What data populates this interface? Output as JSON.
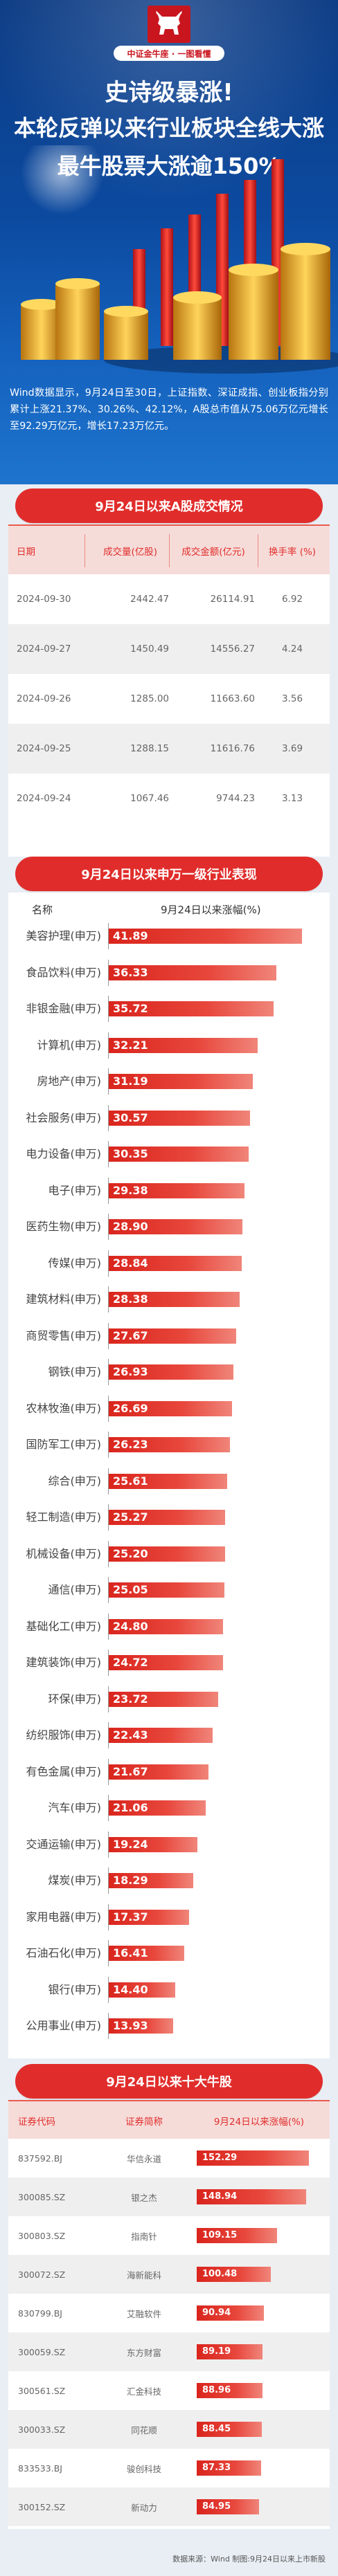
{
  "brand": {
    "label": "中证金牛座 · 一图看懂",
    "logo_icon": "bull-logo-icon"
  },
  "hero": {
    "title_line1": "史诗级暴涨!",
    "title_line2": "本轮反弹以来行业板块全线大涨",
    "title_line3": "最牛股票大涨逾150%",
    "intro": "Wind数据显示，9月24日至30日，上证指数、深证成指、创业板指分别累计上涨21.37%、30.26%、42.12%，A股总市值从75.06万亿元增长至92.29万亿元，增长17.23万亿元。"
  },
  "colors": {
    "accent_red": "#e02d2b",
    "hero_blue": "#0c4aa0",
    "pink_header": "#f6dcd9"
  },
  "section1": {
    "title": "9月24日以来A股成交情况",
    "headers": [
      "日期",
      "成交量(亿股)",
      "成交金额(亿元)",
      "换手率 (%)"
    ],
    "rows": [
      {
        "date": "2024-09-30",
        "volume": "2442.47",
        "amount": "26114.91",
        "turnover": "6.92"
      },
      {
        "date": "2024-09-27",
        "volume": "1450.49",
        "amount": "14556.27",
        "turnover": "4.24"
      },
      {
        "date": "2024-09-26",
        "volume": "1285.00",
        "amount": "11663.60",
        "turnover": "3.56"
      },
      {
        "date": "2024-09-25",
        "volume": "1288.15",
        "amount": "11616.76",
        "turnover": "3.69"
      },
      {
        "date": "2024-09-24",
        "volume": "1067.46",
        "amount": "9744.23",
        "turnover": "3.13"
      }
    ]
  },
  "section2": {
    "title": "9月24日以来申万一级行业表现",
    "col_name": "名称",
    "col_value": "9月24日以来涨幅(%)"
  },
  "chart_data": {
    "type": "bar",
    "title": "9月24日以来申万一级行业表现",
    "xlabel": "9月24日以来涨幅(%)",
    "ylabel": "名称",
    "xlim": [
      0,
      45
    ],
    "grid": false,
    "categories": [
      "美容护理(申万)",
      "食品饮料(申万)",
      "非银金融(申万)",
      "计算机(申万)",
      "房地产(申万)",
      "社会服务(申万)",
      "电力设备(申万)",
      "电子(申万)",
      "医药生物(申万)",
      "传媒(申万)",
      "建筑材料(申万)",
      "商贸零售(申万)",
      "钢铁(申万)",
      "农林牧渔(申万)",
      "国防军工(申万)",
      "综合(申万)",
      "轻工制造(申万)",
      "机械设备(申万)",
      "通信(申万)",
      "基础化工(申万)",
      "建筑装饰(申万)",
      "环保(申万)",
      "纺织服饰(申万)",
      "有色金属(申万)",
      "汽车(申万)",
      "交通运输(申万)",
      "煤炭(申万)",
      "家用电器(申万)",
      "石油石化(申万)",
      "银行(申万)",
      "公用事业(申万)"
    ],
    "values": [
      41.89,
      36.33,
      35.72,
      32.21,
      31.19,
      30.57,
      30.35,
      29.38,
      28.9,
      28.84,
      28.38,
      27.67,
      26.93,
      26.69,
      26.23,
      25.61,
      25.27,
      25.2,
      25.05,
      24.8,
      24.72,
      23.72,
      22.43,
      21.67,
      21.06,
      19.24,
      18.29,
      17.37,
      16.41,
      14.4,
      13.93
    ],
    "labels": [
      "41.89",
      "36.33",
      "35.72",
      "32.21",
      "31.19",
      "30.57",
      "30.35",
      "29.38",
      "28.90",
      "28.84",
      "28.38",
      "27.67",
      "26.93",
      "26.69",
      "26.23",
      "25.61",
      "25.27",
      "25.20",
      "25.05",
      "24.80",
      "24.72",
      "23.72",
      "22.43",
      "21.67",
      "21.06",
      "19.24",
      "18.29",
      "17.37",
      "16.41",
      "14.40",
      "13.93"
    ]
  },
  "section3": {
    "title": "9月24日以来十大牛股",
    "headers": [
      "证券代码",
      "证券简称",
      "9月24日以来涨幅(%)"
    ],
    "max_value": 160,
    "rows": [
      {
        "code": "837592.BJ",
        "name": "华信永道",
        "value": 152.29,
        "label": "152.29"
      },
      {
        "code": "300085.SZ",
        "name": "银之杰",
        "value": 148.94,
        "label": "148.94"
      },
      {
        "code": "300803.SZ",
        "name": "指南针",
        "value": 109.15,
        "label": "109.15"
      },
      {
        "code": "300072.SZ",
        "name": "海新能科",
        "value": 100.48,
        "label": "100.48"
      },
      {
        "code": "830799.BJ",
        "name": "艾融软件",
        "value": 90.94,
        "label": "90.94"
      },
      {
        "code": "300059.SZ",
        "name": "东方财富",
        "value": 89.19,
        "label": "89.19"
      },
      {
        "code": "300561.SZ",
        "name": "汇金科技",
        "value": 88.96,
        "label": "88.96"
      },
      {
        "code": "300033.SZ",
        "name": "同花顺",
        "value": 88.45,
        "label": "88.45"
      },
      {
        "code": "833533.BJ",
        "name": "骏创科技",
        "value": 87.33,
        "label": "87.33"
      },
      {
        "code": "300152.SZ",
        "name": "新动力",
        "value": 84.95,
        "label": "84.95"
      }
    ]
  },
  "footer": {
    "note": "数据来源：Wind 制图:9月24日以来上市新股"
  }
}
